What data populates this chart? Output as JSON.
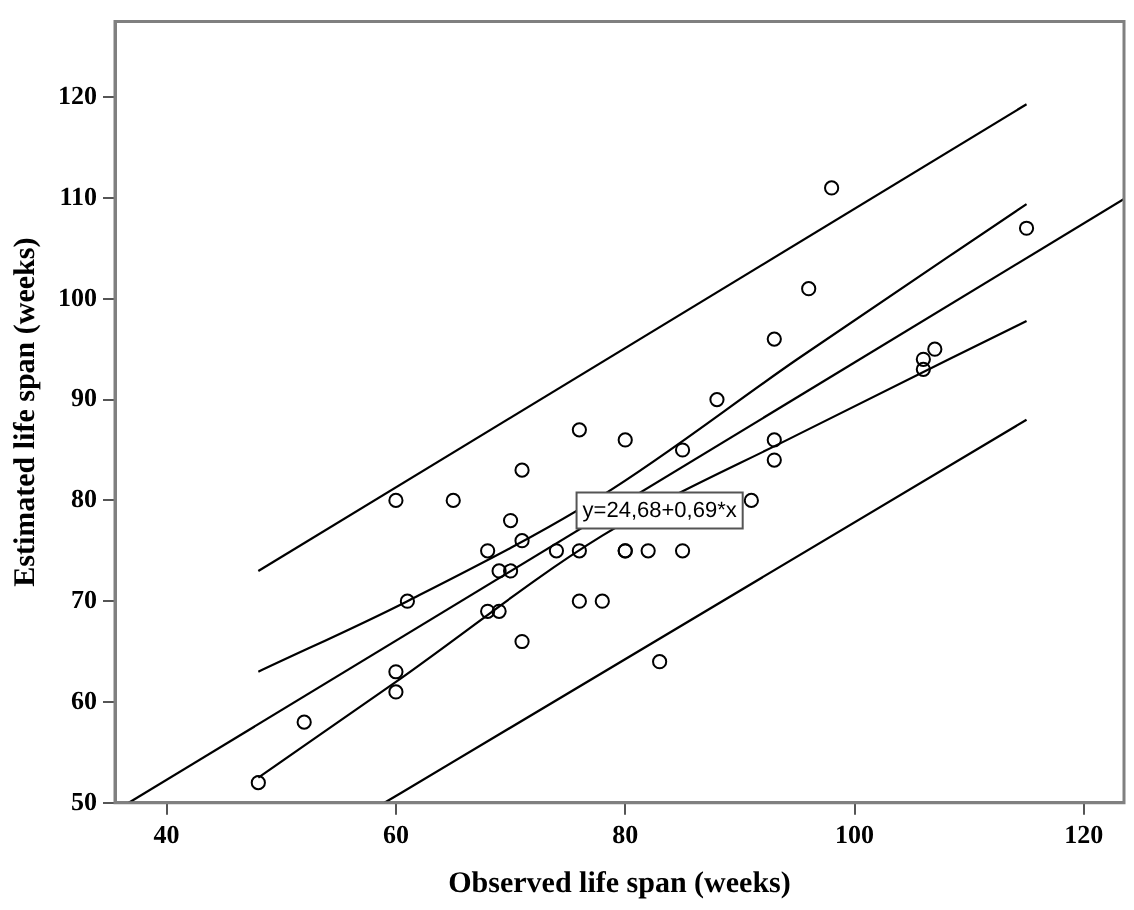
{
  "chart_data": {
    "type": "scatter",
    "xlabel": "Observed life span (weeks)",
    "ylabel": "Estimated life span (weeks)",
    "xlim": [
      35.5,
      123.5
    ],
    "ylim": [
      50,
      127.5
    ],
    "xticks": [
      40,
      60,
      80,
      100,
      120
    ],
    "yticks": [
      50,
      60,
      70,
      80,
      90,
      100,
      110,
      120
    ],
    "grid": false,
    "legend": false,
    "annotations": [
      {
        "text": "y=24,68+0,69*x",
        "x": 83,
        "y": 79
      }
    ],
    "series": [
      {
        "marker": "circle",
        "color": "#000000",
        "x": [
          60,
          65,
          71,
          70,
          71,
          68,
          69,
          70,
          61,
          68,
          69,
          71,
          60,
          60,
          52,
          48,
          74,
          76,
          76,
          78,
          80,
          76,
          80,
          85,
          93,
          93,
          91,
          80,
          82,
          85,
          83,
          98,
          96,
          93,
          88,
          115,
          106,
          107,
          106
        ],
        "values": [
          80,
          80,
          83,
          78,
          76,
          75,
          73,
          73,
          70,
          69,
          69,
          66,
          63,
          61,
          58,
          52,
          75,
          75,
          70,
          70,
          75,
          87,
          86,
          85,
          86,
          84,
          80,
          75,
          75,
          75,
          64,
          111,
          101,
          96,
          90,
          107,
          94,
          95,
          93
        ]
      },
      {
        "type": "line",
        "color": "#000000",
        "x": [
          36.7,
          123.5
        ],
        "values": [
          50,
          109.9
        ]
      },
      {
        "type": "line",
        "color": "#000000",
        "x": [
          48,
          61,
          78,
          95,
          115
        ],
        "values": [
          63,
          70,
          80.5,
          94,
          109.4
        ]
      },
      {
        "type": "line",
        "color": "#000000",
        "x": [
          48,
          60,
          78,
          95,
          115
        ],
        "values": [
          52.5,
          62,
          76.5,
          86.5,
          97.8
        ]
      },
      {
        "type": "line",
        "color": "#000000",
        "x": [
          48,
          115
        ],
        "values": [
          73,
          119.3
        ]
      },
      {
        "type": "line",
        "color": "#000000",
        "x": [
          59,
          115
        ],
        "values": [
          50,
          88
        ]
      }
    ]
  }
}
